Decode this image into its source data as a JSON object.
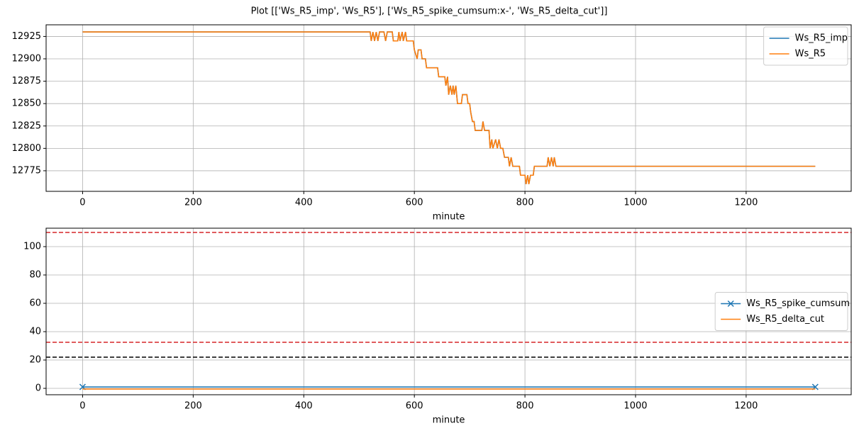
{
  "title": "Plot [['Ws_R5_imp', 'Ws_R5'], ['Ws_R5_spike_cumsum:x-', 'Ws_R5_delta_cut']]",
  "chart_data": [
    {
      "type": "line",
      "xlabel": "minute",
      "x": [
        0,
        520,
        522,
        525,
        528,
        531,
        534,
        537,
        545,
        548,
        551,
        560,
        562,
        570,
        572,
        574,
        578,
        580,
        584,
        586,
        598,
        600,
        605,
        607,
        612,
        614,
        620,
        622,
        642,
        644,
        655,
        657,
        660,
        662,
        665,
        668,
        670,
        672,
        675,
        678,
        685,
        687,
        695,
        697,
        700,
        702,
        705,
        708,
        710,
        722,
        724,
        727,
        735,
        737,
        740,
        742,
        747,
        750,
        753,
        756,
        760,
        763,
        770,
        772,
        775,
        778,
        790,
        792,
        800,
        802,
        805,
        807,
        810,
        815,
        817,
        840,
        842,
        845,
        848,
        851,
        853,
        856,
        1325
      ],
      "series": [
        {
          "name": "Ws_R5_imp",
          "color": "#1f77b4",
          "values": [
            12930,
            12930,
            12920,
            12930,
            12920,
            12930,
            12920,
            12930,
            12930,
            12920,
            12930,
            12930,
            12920,
            12920,
            12930,
            12920,
            12930,
            12920,
            12930,
            12920,
            12920,
            12910,
            12900,
            12910,
            12910,
            12900,
            12900,
            12890,
            12890,
            12880,
            12880,
            12870,
            12880,
            12860,
            12870,
            12860,
            12870,
            12860,
            12870,
            12850,
            12850,
            12860,
            12860,
            12850,
            12850,
            12840,
            12830,
            12830,
            12820,
            12820,
            12830,
            12820,
            12820,
            12800,
            12810,
            12800,
            12810,
            12800,
            12810,
            12800,
            12800,
            12790,
            12790,
            12780,
            12790,
            12780,
            12780,
            12770,
            12770,
            12760,
            12770,
            12760,
            12770,
            12770,
            12780,
            12780,
            12790,
            12780,
            12790,
            12780,
            12790,
            12780,
            12780
          ]
        },
        {
          "name": "Ws_R5",
          "color": "#ff7f0e",
          "values": [
            12930,
            12930,
            12920,
            12930,
            12920,
            12930,
            12920,
            12930,
            12930,
            12920,
            12930,
            12930,
            12920,
            12920,
            12930,
            12920,
            12930,
            12920,
            12930,
            12920,
            12920,
            12910,
            12900,
            12910,
            12910,
            12900,
            12900,
            12890,
            12890,
            12880,
            12880,
            12870,
            12880,
            12860,
            12870,
            12860,
            12870,
            12860,
            12870,
            12850,
            12850,
            12860,
            12860,
            12850,
            12850,
            12840,
            12830,
            12830,
            12820,
            12820,
            12830,
            12820,
            12820,
            12800,
            12810,
            12800,
            12810,
            12800,
            12810,
            12800,
            12800,
            12790,
            12790,
            12780,
            12790,
            12780,
            12780,
            12770,
            12770,
            12760,
            12770,
            12760,
            12770,
            12770,
            12780,
            12780,
            12790,
            12780,
            12790,
            12780,
            12790,
            12780,
            12780
          ]
        }
      ],
      "xlim": [
        -66,
        1390
      ],
      "xticks": [
        0,
        200,
        400,
        600,
        800,
        1000,
        1200
      ],
      "ylim": [
        12752,
        12938
      ],
      "yticks": [
        12775,
        12800,
        12825,
        12850,
        12875,
        12900,
        12925
      ],
      "grid": true,
      "legend": "upper right"
    },
    {
      "type": "line",
      "xlabel": "minute",
      "x": [
        0,
        1325
      ],
      "series": [
        {
          "name": "Ws_R5_spike_cumsum",
          "color": "#1f77b4",
          "marker": "x",
          "values": [
            1,
            1
          ]
        },
        {
          "name": "Ws_R5_delta_cut",
          "color": "#ff7f0e",
          "values": [
            -0.5,
            -0.5
          ]
        }
      ],
      "hlines": [
        {
          "value": 110,
          "color": "#d62728"
        },
        {
          "value": 32.5,
          "color": "#d62728"
        },
        {
          "value": 22,
          "color": "#000000"
        }
      ],
      "xlim": [
        -66,
        1390
      ],
      "xticks": [
        0,
        200,
        400,
        600,
        800,
        1000,
        1200
      ],
      "ylim": [
        -4.5,
        113
      ],
      "yticks": [
        0,
        20,
        40,
        60,
        80,
        100
      ],
      "grid": true,
      "legend": "center right"
    }
  ]
}
